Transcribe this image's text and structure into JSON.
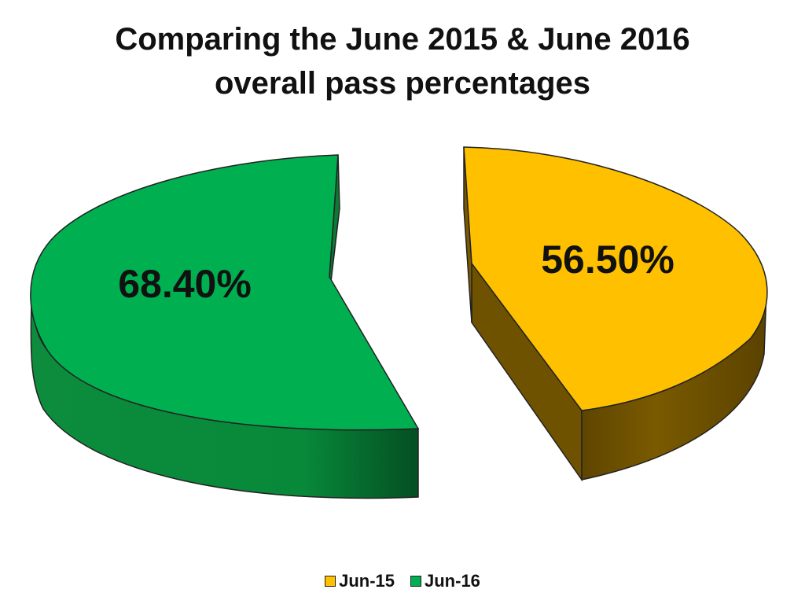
{
  "chart_data": {
    "type": "pie",
    "title": "Comparing the June 2015 & June 2016 overall pass percentages",
    "series": [
      {
        "name": "Jun-15",
        "value": 56.5,
        "label": "56.50%",
        "color": "#FFC000",
        "side_color": "#6E5200"
      },
      {
        "name": "Jun-16",
        "value": 68.4,
        "label": "68.40%",
        "color": "#00B050",
        "side_color": "#0A7A35"
      }
    ],
    "legend": {
      "position": "bottom"
    }
  }
}
